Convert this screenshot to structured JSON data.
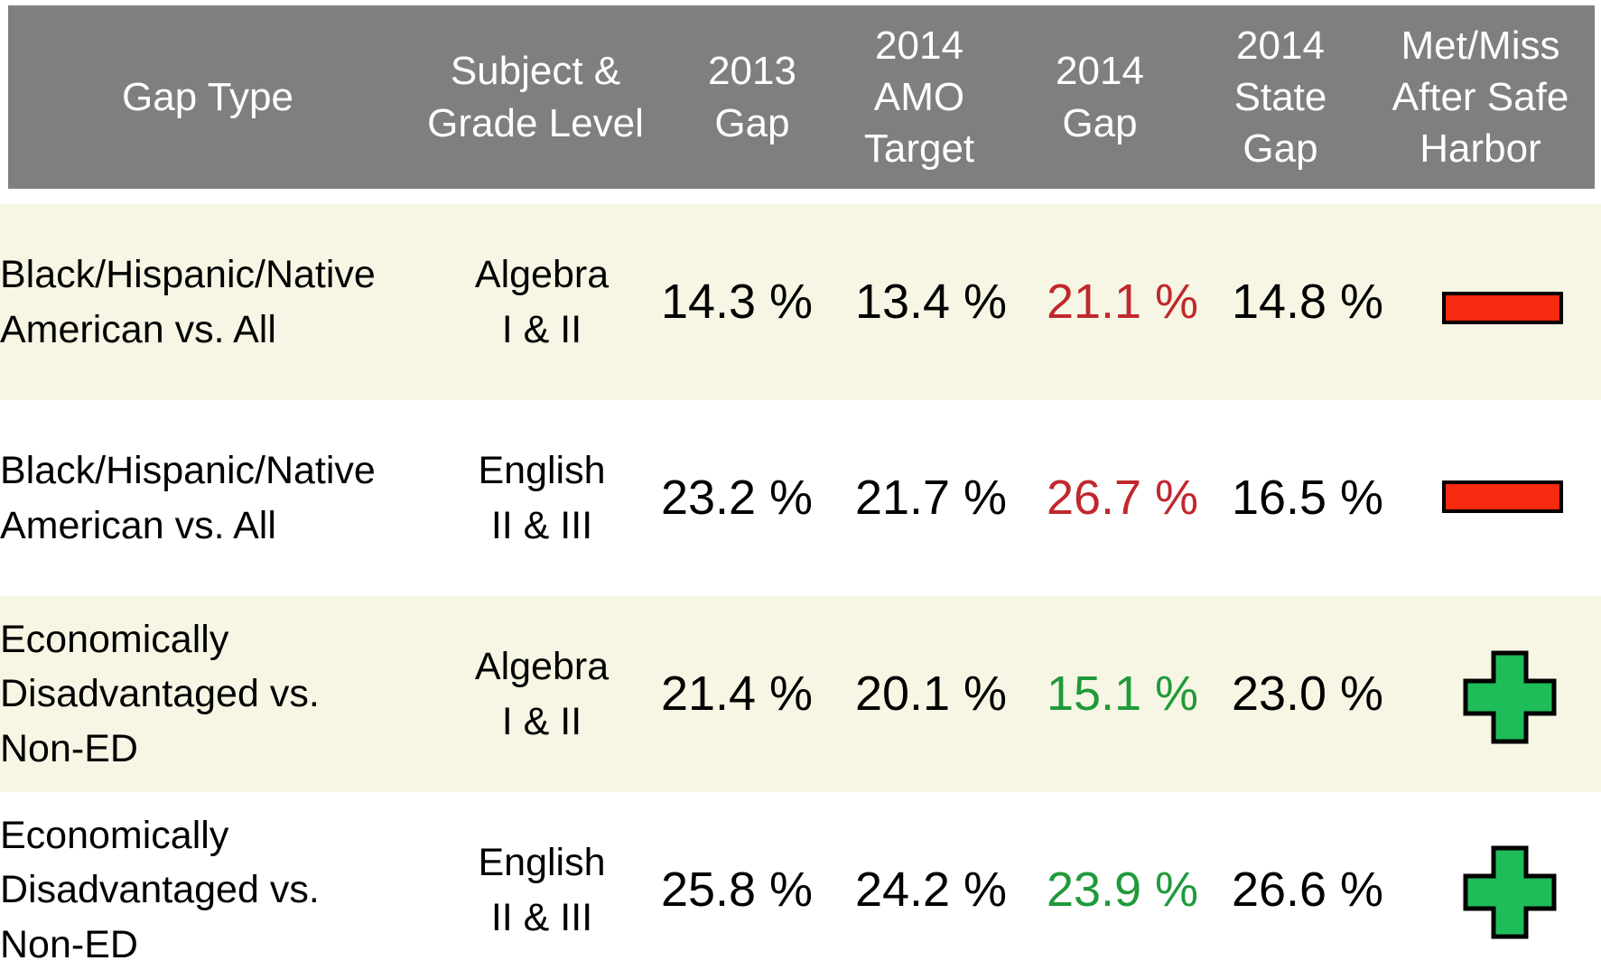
{
  "header": {
    "columns": [
      "Gap Type",
      "Subject &\nGrade Level",
      "2013\nGap",
      "2014\nAMO\nTarget",
      "2014\nGap",
      "2014\nState\nGap",
      "Met/Miss\nAfter Safe\nHarbor"
    ]
  },
  "rows": [
    [
      "Black/Hispanic/Native\nAmerican vs. All",
      "Algebra\nI & II",
      "14.3 %",
      "13.4 %",
      "21.1 %",
      "14.8 %"
    ],
    [
      "Black/Hispanic/Native\nAmerican vs. All",
      "English\nII & III",
      "23.2 %",
      "21.7 %",
      "26.7 %",
      "16.5 %"
    ],
    [
      "Economically\nDisadvantaged vs.\nNon-ED",
      "Algebra\nI & II",
      "21.4 %",
      "20.1 %",
      "15.1 %",
      "23.0 %"
    ],
    [
      "Economically\nDisadvantaged vs.\nNon-ED",
      "English\nII & III",
      "25.8 %",
      "24.2 %",
      "23.9 %",
      "26.6 %"
    ]
  ]
}
